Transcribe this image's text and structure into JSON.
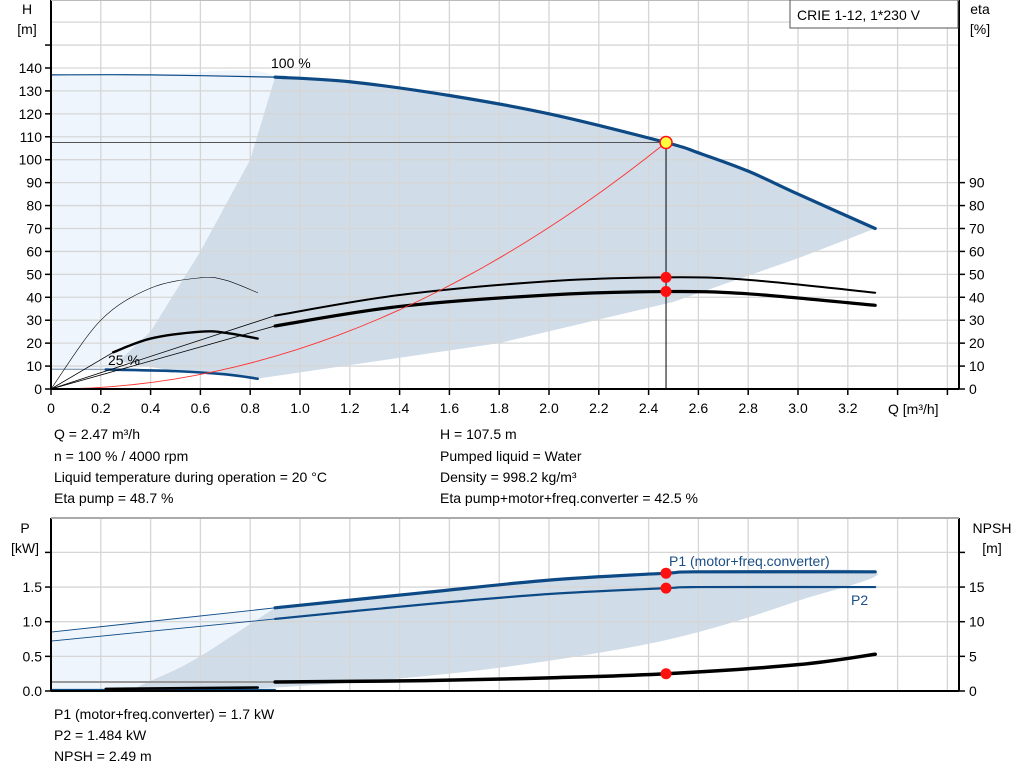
{
  "colors": {
    "curve_blue": "#0d4a85",
    "eff_area": "#d0dce8",
    "ext_area": "#eef5fc",
    "grid": "#d6d6d6",
    "system_curve": "#ff3030",
    "duty_marker": "#ff1010",
    "duty_point": "#ffff40"
  },
  "chart_data": [
    {
      "type": "line",
      "title": "CRIE 1-12, 1*230 V",
      "xlabel": "Q [m³/h]",
      "ylabel": "H\n[m]",
      "ylabel_top": "H",
      "ylabel_unit": "[m]",
      "y2label_top": "eta",
      "y2label_unit": "[%]",
      "xlim": [
        0,
        3.64
      ],
      "ylim": [
        0,
        160
      ],
      "y2lim": [
        0,
        160
      ],
      "grid": true,
      "x_ticks": [
        "0",
        "0.2",
        "0.4",
        "0.6",
        "0.8",
        "1.0",
        "1.2",
        "1.4",
        "1.6",
        "1.8",
        "2.0",
        "2.2",
        "2.4",
        "2.6",
        "2.8",
        "3.0",
        "3.2"
      ],
      "y_ticks": [
        "0",
        "10",
        "20",
        "30",
        "40",
        "50",
        "60",
        "70",
        "80",
        "90",
        "100",
        "110",
        "120",
        "130",
        "140"
      ],
      "y2_ticks": [
        "0",
        "10",
        "20",
        "30",
        "40",
        "50",
        "60",
        "70",
        "80",
        "90"
      ],
      "curve_labels": {
        "full_speed": "100 %",
        "min_speed": "25 %"
      },
      "series": [
        {
          "id": "head_100_ext",
          "axis": "H",
          "points": [
            [
              0,
              137
            ],
            [
              0.4,
              137
            ],
            [
              0.9,
              136
            ]
          ]
        },
        {
          "id": "head_100",
          "axis": "H",
          "points": [
            [
              0.9,
              136
            ],
            [
              1.2,
              134
            ],
            [
              1.6,
              128
            ],
            [
              2.0,
              120
            ],
            [
              2.47,
              107.5
            ],
            [
              2.6,
              103
            ],
            [
              2.8,
              95
            ],
            [
              3.0,
              85
            ],
            [
              3.31,
              70
            ]
          ]
        },
        {
          "id": "head_25_ext",
          "axis": "H",
          "points": [
            [
              0,
              8.6
            ],
            [
              0.22,
              8.5
            ]
          ]
        },
        {
          "id": "head_25",
          "axis": "H",
          "points": [
            [
              0.22,
              8.5
            ],
            [
              0.5,
              7.8
            ],
            [
              0.7,
              6.4
            ],
            [
              0.83,
              4.5
            ]
          ]
        },
        {
          "id": "eta_pump_ext",
          "axis": "eta",
          "points": [
            [
              0,
              0
            ],
            [
              0.9,
              32
            ]
          ]
        },
        {
          "id": "eta_pump",
          "axis": "eta",
          "points": [
            [
              0.9,
              32
            ],
            [
              1.4,
              41
            ],
            [
              2.0,
              47
            ],
            [
              2.47,
              48.7
            ],
            [
              2.8,
              47.6
            ],
            [
              3.31,
              42
            ]
          ]
        },
        {
          "id": "eta_total_ext",
          "axis": "eta",
          "points": [
            [
              0,
              0
            ],
            [
              0.9,
              27.5
            ]
          ]
        },
        {
          "id": "eta_total",
          "axis": "eta",
          "points": [
            [
              0.9,
              27.5
            ],
            [
              1.4,
              36
            ],
            [
              2.0,
              41
            ],
            [
              2.47,
              42.5
            ],
            [
              2.8,
              41.5
            ],
            [
              3.31,
              36.5
            ]
          ]
        },
        {
          "id": "eta_pump_25",
          "axis": "eta",
          "points": [
            [
              0,
              0
            ],
            [
              0.2,
              30
            ],
            [
              0.4,
              44
            ],
            [
              0.6,
              48.5
            ],
            [
              0.7,
              47.5
            ],
            [
              0.83,
              42
            ]
          ]
        },
        {
          "id": "eta_total_25_ext",
          "axis": "eta",
          "points": [
            [
              0,
              0
            ],
            [
              0.25,
              16
            ]
          ]
        },
        {
          "id": "eta_total_25",
          "axis": "eta",
          "points": [
            [
              0.25,
              16
            ],
            [
              0.4,
              22
            ],
            [
              0.6,
              25
            ],
            [
              0.7,
              24.5
            ],
            [
              0.83,
              22
            ]
          ]
        },
        {
          "id": "system_curve",
          "axis": "H",
          "k": 17.62,
          "q_range": [
            0,
            2.47
          ]
        }
      ],
      "areas": {
        "extended": [
          [
            0,
            137
          ],
          [
            0.4,
            137
          ],
          [
            0.9,
            136
          ],
          [
            0.8,
            100
          ],
          [
            0.6,
            60
          ],
          [
            0.4,
            25
          ],
          [
            0.27,
            12
          ],
          [
            0.22,
            8.5
          ],
          [
            0,
            8.6
          ]
        ],
        "efficient": [
          [
            0.9,
            136
          ],
          [
            1.2,
            134
          ],
          [
            1.6,
            128
          ],
          [
            2.0,
            120
          ],
          [
            2.47,
            107.5
          ],
          [
            2.6,
            103
          ],
          [
            2.8,
            95
          ],
          [
            3.0,
            85
          ],
          [
            3.31,
            70
          ],
          [
            3.0,
            57
          ],
          [
            2.5,
            38
          ],
          [
            1.8,
            20
          ],
          [
            0.83,
            4.5
          ],
          [
            0.7,
            6.4
          ],
          [
            0.5,
            7.8
          ],
          [
            0.27,
            12
          ],
          [
            0.4,
            25
          ],
          [
            0.6,
            60
          ],
          [
            0.8,
            100
          ]
        ]
      },
      "duty_point": {
        "Q": 2.47,
        "H": 107.5,
        "eta_pump": 48.7,
        "eta_total": 42.5
      }
    },
    {
      "type": "line",
      "ylabel_top": "P",
      "ylabel_unit": "[kW]",
      "y2label_top": "NPSH",
      "y2label_unit": "[m]",
      "xlim": [
        0,
        3.64
      ],
      "ylim": [
        0,
        2.5
      ],
      "y2lim": [
        0,
        25
      ],
      "grid": true,
      "y_ticks": [
        "0.0",
        "0.5",
        "1.0",
        "1.5"
      ],
      "y2_ticks": [
        "0",
        "5",
        "10",
        "15"
      ],
      "curve_labels": {
        "p1": "P1 (motor+freq.converter)",
        "p2": "P2"
      },
      "series": [
        {
          "id": "p1_ext",
          "axis": "P",
          "points": [
            [
              0,
              0.85
            ],
            [
              0.9,
              1.2
            ]
          ]
        },
        {
          "id": "p1",
          "axis": "P",
          "points": [
            [
              0.9,
              1.2
            ],
            [
              1.5,
              1.42
            ],
            [
              2.0,
              1.6
            ],
            [
              2.47,
              1.7
            ],
            [
              2.6,
              1.72
            ],
            [
              3.31,
              1.72
            ]
          ]
        },
        {
          "id": "p2_ext",
          "axis": "P",
          "points": [
            [
              0,
              0.72
            ],
            [
              0.9,
              1.04
            ]
          ]
        },
        {
          "id": "p2",
          "axis": "P",
          "points": [
            [
              0.9,
              1.04
            ],
            [
              1.5,
              1.25
            ],
            [
              2.0,
              1.4
            ],
            [
              2.47,
              1.484
            ],
            [
              2.6,
              1.5
            ],
            [
              3.31,
              1.5
            ]
          ]
        },
        {
          "id": "npsh_ext",
          "axis": "NPSH",
          "points": [
            [
              0,
              1.3
            ],
            [
              0.9,
              1.3
            ]
          ]
        },
        {
          "id": "npsh",
          "axis": "NPSH",
          "points": [
            [
              0.9,
              1.3
            ],
            [
              1.5,
              1.5
            ],
            [
              2.0,
              1.9
            ],
            [
              2.47,
              2.49
            ],
            [
              3.0,
              3.8
            ],
            [
              3.31,
              5.3
            ]
          ]
        },
        {
          "id": "p_25_ext",
          "axis": "P",
          "points": [
            [
              0,
              0.02
            ],
            [
              0.9,
              0.02
            ]
          ]
        },
        {
          "id": "p_25",
          "axis": "P",
          "points": [
            [
              0.22,
              0.03
            ],
            [
              0.83,
              0.05
            ]
          ]
        }
      ],
      "areas": {
        "extended": [
          [
            0,
            0.85
          ],
          [
            0.9,
            1.2
          ],
          [
            0.75,
            0.85
          ],
          [
            0.55,
            0.4
          ],
          [
            0.35,
            0.06
          ],
          [
            0,
            0
          ]
        ],
        "efficient": [
          [
            0.9,
            1.2
          ],
          [
            1.5,
            1.42
          ],
          [
            2.0,
            1.6
          ],
          [
            2.47,
            1.7
          ],
          [
            2.6,
            1.72
          ],
          [
            3.31,
            1.72
          ],
          [
            3.0,
            1.3
          ],
          [
            2.6,
            0.85
          ],
          [
            2.2,
            0.55
          ],
          [
            1.6,
            0.25
          ],
          [
            0.9,
            0.05
          ],
          [
            0.35,
            0.0
          ],
          [
            0.35,
            0.06
          ],
          [
            0.55,
            0.4
          ],
          [
            0.75,
            0.85
          ]
        ]
      },
      "duty_point": {
        "Q": 2.47,
        "P1": 1.7,
        "P2": 1.484,
        "NPSH": 2.49
      }
    }
  ],
  "info_top": {
    "left": [
      "Q = 2.47 m³/h",
      "n = 100 % / 4000 rpm",
      "Liquid temperature during operation = 20 °C",
      "Eta pump = 48.7 %"
    ],
    "right": [
      "H = 107.5 m",
      "Pumped liquid = Water",
      "Density = 998.2 kg/m³",
      "Eta pump+motor+freq.converter = 42.5 %"
    ]
  },
  "info_bottom": [
    "P1 (motor+freq.converter) = 1.7 kW",
    "P2 = 1.484 kW",
    "NPSH = 2.49 m"
  ]
}
